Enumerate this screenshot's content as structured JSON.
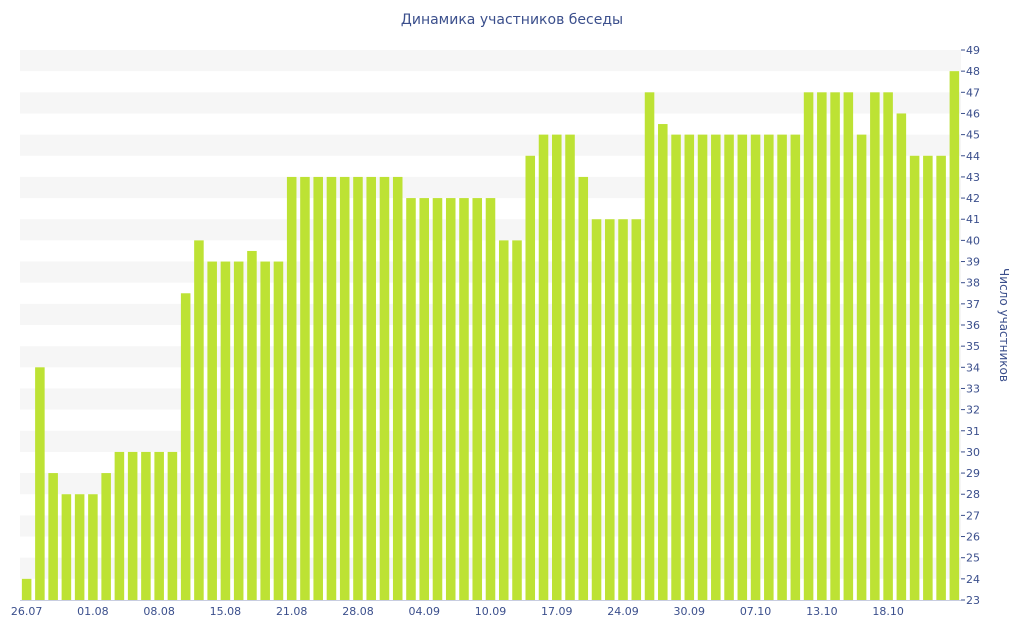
{
  "chart_data": {
    "type": "bar",
    "title": "Динамика участников беседы",
    "ylabel": "Число участников",
    "xlabel": "",
    "ylim": [
      23,
      49
    ],
    "y_axis_position": "right",
    "grid": "horizontal-bands",
    "bar_color": "#bde234",
    "band_color": "#f6f6f6",
    "text_color": "#3b4f8c",
    "x_tick_labels": [
      {
        "label": "26.07",
        "index": 0
      },
      {
        "label": "01.08",
        "index": 5
      },
      {
        "label": "08.08",
        "index": 10
      },
      {
        "label": "15.08",
        "index": 15
      },
      {
        "label": "21.08",
        "index": 20
      },
      {
        "label": "28.08",
        "index": 25
      },
      {
        "label": "04.09",
        "index": 30
      },
      {
        "label": "10.09",
        "index": 35
      },
      {
        "label": "17.09",
        "index": 40
      },
      {
        "label": "24.09",
        "index": 45
      },
      {
        "label": "30.09",
        "index": 50
      },
      {
        "label": "07.10",
        "index": 55
      },
      {
        "label": "13.10",
        "index": 60
      },
      {
        "label": "18.10",
        "index": 65
      }
    ],
    "values": [
      24,
      34,
      29,
      28,
      28,
      28,
      29,
      30,
      30,
      30,
      30,
      30,
      37.5,
      40,
      39,
      39,
      39,
      39.5,
      39,
      39,
      43,
      43,
      43,
      43,
      43,
      43,
      43,
      43,
      43,
      42,
      42,
      42,
      42,
      42,
      42,
      42,
      40,
      40,
      44,
      45,
      45,
      45,
      43,
      41,
      41,
      41,
      41,
      47,
      45.5,
      45,
      45,
      45,
      45,
      45,
      45,
      45,
      45,
      45,
      45,
      47,
      47,
      47,
      47,
      45,
      47,
      47,
      46,
      44,
      44,
      44,
      48
    ]
  }
}
